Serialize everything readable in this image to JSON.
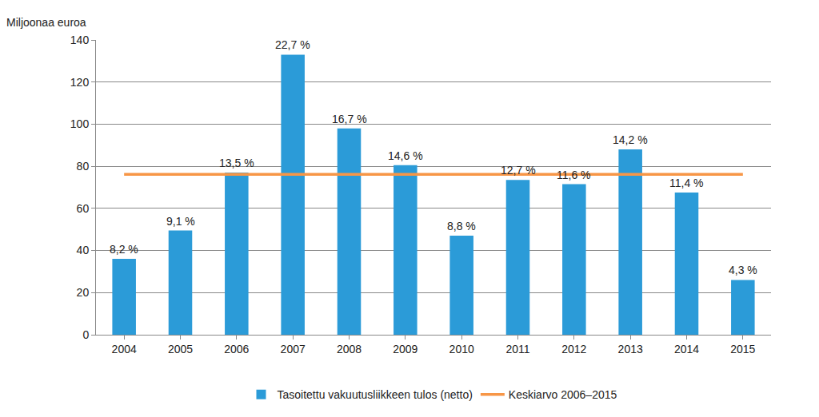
{
  "chart_data": {
    "type": "bar",
    "y_label": "Miljoonaa euroa",
    "categories": [
      "2004",
      "2005",
      "2006",
      "2007",
      "2008",
      "2009",
      "2010",
      "2011",
      "2012",
      "2013",
      "2014",
      "2015"
    ],
    "series": [
      {
        "name": "Tasoitettu vakuutusliikkeen tulos (netto)",
        "type": "bar",
        "color": "#2b9bd8",
        "values": [
          36,
          49.5,
          77,
          133,
          98,
          80.5,
          47,
          73.5,
          71.5,
          88,
          67.5,
          26
        ]
      },
      {
        "name": "Keskiarvo 2006–2015",
        "type": "line",
        "color": "#f79646",
        "values": [
          76.2,
          76.2,
          76.2,
          76.2,
          76.2,
          76.2,
          76.2,
          76.2,
          76.2,
          76.2,
          76.2,
          76.2
        ]
      }
    ],
    "annotations": [
      {
        "category": "2004",
        "text": "8,2 %"
      },
      {
        "category": "2005",
        "text": "9,1 %"
      },
      {
        "category": "2006",
        "text": "13,5 %"
      },
      {
        "category": "2007",
        "text": "22,7 %"
      },
      {
        "category": "2008",
        "text": "16,7 %"
      },
      {
        "category": "2009",
        "text": "14,6 %"
      },
      {
        "category": "2010",
        "text": "8,8 %"
      },
      {
        "category": "2011",
        "text": "12,7 %"
      },
      {
        "category": "2012",
        "text": "11,6 %"
      },
      {
        "category": "2013",
        "text": "14,2 %"
      },
      {
        "category": "2014",
        "text": "11,4 %"
      },
      {
        "category": "2015",
        "text": "4,3 %"
      }
    ],
    "ylim": [
      0,
      140
    ],
    "yticks": [
      0,
      20,
      40,
      60,
      80,
      100,
      120,
      140
    ],
    "grid": true,
    "legend": "bottom"
  }
}
